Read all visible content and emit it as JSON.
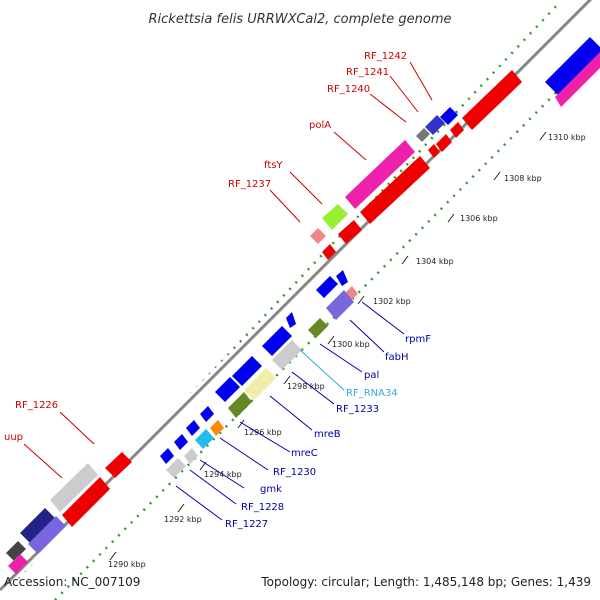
{
  "title": "Rickettsia felis URRWXCal2, complete genome",
  "footer": {
    "accession": "Accession: NC_007109",
    "topology": "Topology: circular; Length: 1,485,148 bp; Genes: 1,439"
  },
  "colors": {
    "label_red": "#cc0000",
    "label_blue": "#0000aa",
    "label_cyan": "#33aadd",
    "track_line": "#888888",
    "dots": "#339933"
  },
  "ticks": [
    "1290 kbp",
    "1292 kbp",
    "1294 kbp",
    "1296 kbp",
    "1298 kbp",
    "1300 kbp",
    "1302 kbp",
    "1304 kbp",
    "1306 kbp",
    "1308 kbp",
    "1310 kbp"
  ],
  "labels": {
    "rf1242": "RF_1242",
    "rf1241": "RF_1241",
    "rf1240": "RF_1240",
    "polA": "polA",
    "ftsY": "ftsY",
    "rf1237": "RF_1237",
    "rf1226": "RF_1226",
    "uup": "uup",
    "rpmF": "rpmF",
    "fabH": "fabH",
    "pal": "pal",
    "rfrna34": "RF_RNA34",
    "rf1233": "RF_1233",
    "mreB": "mreB",
    "mreC": "mreC",
    "rf1230": "RF_1230",
    "gmk": "gmk",
    "rf1228": "RF_1228",
    "rf1227": "RF_1227"
  }
}
